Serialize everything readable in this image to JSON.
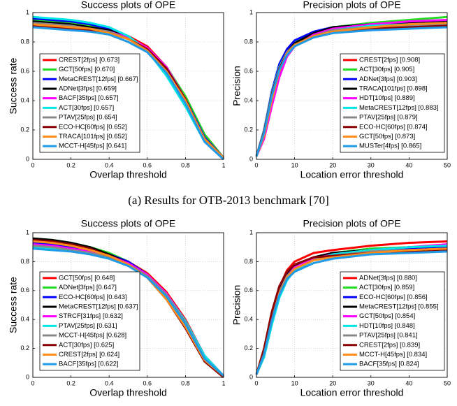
{
  "caption": "(a) Results for OTB-2013 benchmark [70]",
  "chart_data": [
    {
      "type": "line",
      "title": "Success plots of OPE",
      "xlabel": "Overlap threshold",
      "ylabel": "Success rate",
      "x": [
        0,
        0.1,
        0.2,
        0.3,
        0.4,
        0.5,
        0.6,
        0.7,
        0.8,
        0.9,
        1
      ],
      "xlim": [
        0,
        1
      ],
      "ylim": [
        0,
        1
      ],
      "xticks": [
        0,
        0.2,
        0.4,
        0.6,
        0.8,
        1
      ],
      "yticks": [
        0,
        0.2,
        0.4,
        0.6,
        0.8,
        1
      ],
      "grid": true,
      "legend": "lower left",
      "series": [
        {
          "name": "CREST[2fps] [0.673]",
          "color": "#ff0000",
          "values": [
            0.96,
            0.95,
            0.94,
            0.92,
            0.89,
            0.84,
            0.77,
            0.63,
            0.42,
            0.17,
            0.01
          ]
        },
        {
          "name": "GCT[50fps] [0.670]",
          "color": "#22dd22",
          "values": [
            0.95,
            0.94,
            0.93,
            0.91,
            0.88,
            0.83,
            0.76,
            0.63,
            0.43,
            0.17,
            0.01
          ]
        },
        {
          "name": "MetaCREST[12fps] [0.667]",
          "color": "#0000ff",
          "values": [
            0.96,
            0.95,
            0.94,
            0.92,
            0.89,
            0.83,
            0.75,
            0.61,
            0.41,
            0.15,
            0.01
          ]
        },
        {
          "name": "ADNet[3fps] [0.659]",
          "color": "#000000",
          "values": [
            0.94,
            0.93,
            0.92,
            0.9,
            0.88,
            0.83,
            0.75,
            0.6,
            0.39,
            0.14,
            0.01
          ]
        },
        {
          "name": "BACF[35fps] [0.657]",
          "color": "#ff00ff",
          "values": [
            0.92,
            0.91,
            0.9,
            0.89,
            0.87,
            0.83,
            0.76,
            0.63,
            0.41,
            0.12,
            0.0
          ]
        },
        {
          "name": "ACT[30fps] [0.657]",
          "color": "#00e5e5",
          "values": [
            0.97,
            0.96,
            0.95,
            0.93,
            0.9,
            0.84,
            0.74,
            0.57,
            0.36,
            0.12,
            0.0
          ]
        },
        {
          "name": "PTAV[25fps] [0.654]",
          "color": "#888888",
          "values": [
            0.93,
            0.92,
            0.91,
            0.89,
            0.87,
            0.82,
            0.75,
            0.6,
            0.38,
            0.13,
            0.01
          ]
        },
        {
          "name": "ECO-HC[60fps] [0.652]",
          "color": "#8b0000",
          "values": [
            0.91,
            0.9,
            0.89,
            0.88,
            0.86,
            0.82,
            0.75,
            0.62,
            0.41,
            0.13,
            0.0
          ]
        },
        {
          "name": "TRACA[101fps] [0.652]",
          "color": "#ff8c1a",
          "values": [
            0.92,
            0.91,
            0.9,
            0.89,
            0.86,
            0.82,
            0.74,
            0.6,
            0.4,
            0.14,
            0.01
          ]
        },
        {
          "name": "MCCT-H[45fps] [0.641]",
          "color": "#1f9ae6",
          "values": [
            0.9,
            0.89,
            0.88,
            0.87,
            0.85,
            0.8,
            0.73,
            0.59,
            0.38,
            0.12,
            0.0
          ]
        }
      ]
    },
    {
      "type": "line",
      "title": "Precision plots of OPE",
      "xlabel": "Location error threshold",
      "ylabel": "Precision",
      "x": [
        0,
        2,
        4,
        6,
        8,
        10,
        15,
        20,
        30,
        40,
        50
      ],
      "xlim": [
        0,
        50
      ],
      "ylim": [
        0,
        1
      ],
      "xticks": [
        0,
        10,
        20,
        30,
        40,
        50
      ],
      "yticks": [
        0,
        0.2,
        0.4,
        0.6,
        0.8,
        1
      ],
      "grid": true,
      "legend": "lower right",
      "series": [
        {
          "name": "CREST[2fps] [0.908]",
          "color": "#ff0000",
          "values": [
            0.02,
            0.2,
            0.45,
            0.64,
            0.75,
            0.8,
            0.86,
            0.9,
            0.92,
            0.93,
            0.94
          ]
        },
        {
          "name": "ACT[30fps] [0.905]",
          "color": "#22dd22",
          "values": [
            0.02,
            0.19,
            0.44,
            0.63,
            0.74,
            0.8,
            0.86,
            0.9,
            0.93,
            0.95,
            0.97
          ]
        },
        {
          "name": "ADNet[3fps] [0.903]",
          "color": "#0000ff",
          "values": [
            0.02,
            0.2,
            0.46,
            0.65,
            0.75,
            0.81,
            0.87,
            0.9,
            0.92,
            0.93,
            0.94
          ]
        },
        {
          "name": "TRACA[101fps] [0.898]",
          "color": "#000000",
          "values": [
            0.02,
            0.18,
            0.43,
            0.62,
            0.73,
            0.79,
            0.86,
            0.9,
            0.92,
            0.93,
            0.94
          ]
        },
        {
          "name": "HDT[10fps] [0.889]",
          "color": "#ff00ff",
          "values": [
            0.02,
            0.14,
            0.36,
            0.56,
            0.7,
            0.77,
            0.85,
            0.89,
            0.92,
            0.94,
            0.95
          ]
        },
        {
          "name": "MetaCREST[12fps] [0.883]",
          "color": "#00e5e5",
          "values": [
            0.02,
            0.2,
            0.45,
            0.63,
            0.73,
            0.78,
            0.84,
            0.88,
            0.91,
            0.92,
            0.93
          ]
        },
        {
          "name": "PTAV[25fps] [0.879]",
          "color": "#888888",
          "values": [
            0.02,
            0.19,
            0.44,
            0.62,
            0.73,
            0.78,
            0.84,
            0.88,
            0.9,
            0.91,
            0.92
          ]
        },
        {
          "name": "ECO-HC[60fps] [0.874]",
          "color": "#8b0000",
          "values": [
            0.02,
            0.19,
            0.44,
            0.62,
            0.72,
            0.78,
            0.84,
            0.87,
            0.89,
            0.9,
            0.91
          ]
        },
        {
          "name": "GCT[50fps] [0.873]",
          "color": "#ff8c1a",
          "values": [
            0.02,
            0.16,
            0.4,
            0.6,
            0.72,
            0.78,
            0.84,
            0.87,
            0.9,
            0.92,
            0.93
          ]
        },
        {
          "name": "MUSTer[4fps] [0.865]",
          "color": "#1f9ae6",
          "values": [
            0.02,
            0.18,
            0.43,
            0.61,
            0.71,
            0.77,
            0.83,
            0.86,
            0.88,
            0.89,
            0.9
          ]
        }
      ]
    },
    {
      "type": "line",
      "title": "Success plots of OPE",
      "xlabel": "Overlap threshold",
      "ylabel": "Success rate",
      "x": [
        0,
        0.1,
        0.2,
        0.3,
        0.4,
        0.5,
        0.6,
        0.7,
        0.8,
        0.9,
        1
      ],
      "xlim": [
        0,
        1
      ],
      "ylim": [
        0,
        1
      ],
      "xticks": [
        0,
        0.2,
        0.4,
        0.6,
        0.8,
        1
      ],
      "yticks": [
        0,
        0.2,
        0.4,
        0.6,
        0.8,
        1
      ],
      "grid": true,
      "legend": "lower left",
      "series": [
        {
          "name": "GCT[50fps] [0.648]",
          "color": "#ff0000",
          "values": [
            0.92,
            0.91,
            0.9,
            0.88,
            0.85,
            0.8,
            0.72,
            0.59,
            0.4,
            0.15,
            0.01
          ]
        },
        {
          "name": "ADNet[3fps] [0.647]",
          "color": "#22dd22",
          "values": [
            0.96,
            0.95,
            0.93,
            0.9,
            0.86,
            0.8,
            0.71,
            0.56,
            0.37,
            0.13,
            0.01
          ]
        },
        {
          "name": "ECO-HC[60fps] [0.643]",
          "color": "#0000ff",
          "values": [
            0.93,
            0.92,
            0.9,
            0.88,
            0.85,
            0.8,
            0.71,
            0.57,
            0.38,
            0.13,
            0.01
          ]
        },
        {
          "name": "MetaCREST[12fps] [0.637]",
          "color": "#000000",
          "values": [
            0.96,
            0.95,
            0.93,
            0.9,
            0.85,
            0.79,
            0.7,
            0.55,
            0.35,
            0.12,
            0.01
          ]
        },
        {
          "name": "STRCF[31fps] [0.632]",
          "color": "#ff00ff",
          "values": [
            0.92,
            0.91,
            0.89,
            0.87,
            0.84,
            0.79,
            0.71,
            0.58,
            0.39,
            0.15,
            0.01
          ]
        },
        {
          "name": "PTAV[25fps] [0.631]",
          "color": "#00e5e5",
          "values": [
            0.9,
            0.89,
            0.88,
            0.86,
            0.83,
            0.78,
            0.7,
            0.57,
            0.39,
            0.15,
            0.01
          ]
        },
        {
          "name": "MCCT-H[45fps] [0.628]",
          "color": "#888888",
          "values": [
            0.91,
            0.9,
            0.88,
            0.86,
            0.83,
            0.78,
            0.7,
            0.57,
            0.38,
            0.13,
            0.01
          ]
        },
        {
          "name": "ACT[30fps] [0.625]",
          "color": "#8b0000",
          "values": [
            0.95,
            0.94,
            0.92,
            0.89,
            0.84,
            0.78,
            0.69,
            0.54,
            0.34,
            0.11,
            0.0
          ]
        },
        {
          "name": "CREST[2fps] [0.624]",
          "color": "#ff8c1a",
          "values": [
            0.94,
            0.93,
            0.91,
            0.88,
            0.84,
            0.78,
            0.69,
            0.54,
            0.35,
            0.12,
            0.01
          ]
        },
        {
          "name": "BACF[35fps] [0.622]",
          "color": "#1f9ae6",
          "values": [
            0.89,
            0.88,
            0.87,
            0.85,
            0.82,
            0.77,
            0.69,
            0.56,
            0.37,
            0.13,
            0.01
          ]
        }
      ]
    },
    {
      "type": "line",
      "title": "Precision plots of OPE",
      "xlabel": "Location error threshold",
      "ylabel": "Precision",
      "x": [
        0,
        2,
        4,
        6,
        8,
        10,
        15,
        20,
        30,
        40,
        50
      ],
      "xlim": [
        0,
        50
      ],
      "ylim": [
        0,
        1
      ],
      "xticks": [
        0,
        10,
        20,
        30,
        40,
        50
      ],
      "yticks": [
        0,
        0.2,
        0.4,
        0.6,
        0.8,
        1
      ],
      "grid": true,
      "legend": "lower right",
      "series": [
        {
          "name": "ADNet[3fps] [0.880]",
          "color": "#ff0000",
          "values": [
            0.02,
            0.18,
            0.43,
            0.62,
            0.74,
            0.8,
            0.86,
            0.88,
            0.91,
            0.93,
            0.94
          ]
        },
        {
          "name": "ACT[30fps] [0.859]",
          "color": "#22dd22",
          "values": [
            0.02,
            0.15,
            0.38,
            0.56,
            0.68,
            0.75,
            0.82,
            0.86,
            0.89,
            0.9,
            0.91
          ]
        },
        {
          "name": "ECO-HC[60fps] [0.856]",
          "color": "#0000ff",
          "values": [
            0.02,
            0.18,
            0.42,
            0.6,
            0.71,
            0.77,
            0.83,
            0.86,
            0.88,
            0.89,
            0.9
          ]
        },
        {
          "name": "MetaCREST[12fps] [0.855]",
          "color": "#000000",
          "values": [
            0.02,
            0.18,
            0.43,
            0.61,
            0.72,
            0.77,
            0.83,
            0.86,
            0.88,
            0.9,
            0.91
          ]
        },
        {
          "name": "GCT[50fps] [0.854]",
          "color": "#ff00ff",
          "values": [
            0.02,
            0.17,
            0.4,
            0.59,
            0.7,
            0.76,
            0.82,
            0.85,
            0.88,
            0.9,
            0.92
          ]
        },
        {
          "name": "HDT[10fps] [0.848]",
          "color": "#00e5e5",
          "values": [
            0.02,
            0.14,
            0.36,
            0.55,
            0.67,
            0.74,
            0.81,
            0.85,
            0.88,
            0.9,
            0.91
          ]
        },
        {
          "name": "PTAV[25fps] [0.841]",
          "color": "#888888",
          "values": [
            0.02,
            0.17,
            0.41,
            0.59,
            0.7,
            0.75,
            0.81,
            0.84,
            0.87,
            0.88,
            0.89
          ]
        },
        {
          "name": "CREST[2fps] [0.839]",
          "color": "#8b0000",
          "values": [
            0.02,
            0.2,
            0.45,
            0.63,
            0.73,
            0.78,
            0.83,
            0.84,
            0.86,
            0.87,
            0.88
          ]
        },
        {
          "name": "MCCT-H[45fps] [0.834]",
          "color": "#ff8c1a",
          "values": [
            0.02,
            0.16,
            0.39,
            0.58,
            0.69,
            0.75,
            0.81,
            0.83,
            0.86,
            0.88,
            0.89
          ]
        },
        {
          "name": "BACF[35fps] [0.824]",
          "color": "#1f9ae6",
          "values": [
            0.02,
            0.16,
            0.39,
            0.57,
            0.68,
            0.73,
            0.79,
            0.82,
            0.85,
            0.86,
            0.87
          ]
        }
      ]
    }
  ]
}
